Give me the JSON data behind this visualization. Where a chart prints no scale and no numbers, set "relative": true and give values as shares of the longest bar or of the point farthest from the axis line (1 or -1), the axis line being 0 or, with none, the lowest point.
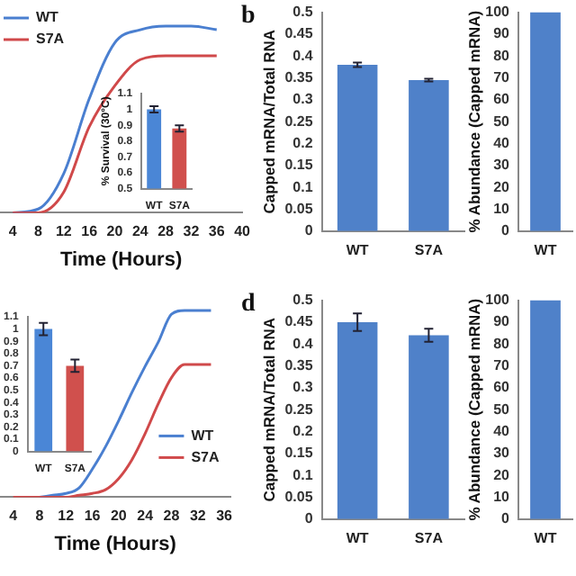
{
  "chart_data": [
    {
      "type": "line",
      "xlabel": "Time (Hours)",
      "relative": true,
      "x": [
        4,
        8,
        12,
        16,
        20,
        24,
        28,
        32,
        36
      ],
      "xlim": [
        2,
        40
      ],
      "xticks": [
        4,
        8,
        12,
        16,
        20,
        24,
        28,
        32,
        36,
        40
      ],
      "legend": "top left",
      "marker": "none",
      "series": [
        {
          "name": "WT",
          "color": "#4a7fd0",
          "values": [
            0,
            0.02,
            0.21,
            0.61,
            0.91,
            0.98,
            1,
            1,
            0.98
          ]
        },
        {
          "name": "S7A",
          "color": "#d0494a",
          "values": [
            0,
            0,
            0.11,
            0.46,
            0.68,
            0.82,
            0.84,
            0.84,
            0.84
          ]
        }
      ]
    },
    {
      "type": "bar",
      "ylabel": "% Survival (30°C)",
      "categories": [
        "WT",
        "S7A"
      ],
      "values": [
        1.0,
        0.88
      ],
      "errors": [
        0.02,
        0.02
      ],
      "colors": [
        "#4a86d6",
        "#d0504d"
      ],
      "ylim": [
        0.5,
        1.1
      ],
      "yticks": [
        0.5,
        0.6,
        0.7,
        0.8,
        0.9,
        1,
        1.1
      ]
    },
    {
      "type": "bar",
      "ylabel": "Capped mRNA/Total RNA",
      "annotations": [
        "b"
      ],
      "categories": [
        "WT",
        "S7A"
      ],
      "values": [
        0.38,
        0.345
      ],
      "errors": [
        0.005,
        0.003
      ],
      "colors": [
        "#4f81c9",
        "#4f81c9"
      ],
      "ylim": [
        0,
        0.5
      ],
      "yticks": [
        0,
        0.05,
        0.1,
        0.15,
        0.2,
        0.25,
        0.3,
        0.35,
        0.4,
        0.45,
        0.5
      ]
    },
    {
      "type": "bar",
      "ylabel": "% Abundance (Capped mRNA)",
      "categories": [
        "WT"
      ],
      "values": [
        100
      ],
      "colors": [
        "#4f81c9"
      ],
      "ylim": [
        0,
        100
      ],
      "yticks": [
        0,
        10,
        20,
        30,
        40,
        50,
        60,
        70,
        80,
        90,
        100
      ]
    },
    {
      "type": "line",
      "xlabel": "Time (Hours)",
      "relative": true,
      "x": [
        4,
        6,
        8,
        10,
        12,
        14,
        16,
        18,
        20,
        22,
        24,
        26,
        28,
        30,
        32,
        34
      ],
      "xlim": [
        2,
        37
      ],
      "xticks": [
        4,
        8,
        12,
        16,
        20,
        24,
        28,
        32,
        36
      ],
      "legend": "bottom right",
      "marker": "none",
      "series": [
        {
          "name": "WT",
          "color": "#4a7fd0",
          "values": [
            null,
            null,
            0,
            0.01,
            0.02,
            0.05,
            0.15,
            0.27,
            0.41,
            0.56,
            0.7,
            0.83,
            0.98,
            1,
            1,
            1
          ]
        },
        {
          "name": "S7A",
          "color": "#d0494a",
          "values": [
            0,
            0,
            0,
            0,
            0,
            0.01,
            0.02,
            0.04,
            0.1,
            0.2,
            0.34,
            0.5,
            0.64,
            0.71,
            0.71,
            0.71
          ]
        }
      ]
    },
    {
      "type": "bar",
      "categories": [
        "WT",
        "S7A"
      ],
      "values": [
        1.0,
        0.7
      ],
      "errors": [
        0.05,
        0.05
      ],
      "colors": [
        "#4a86d6",
        "#d0504d"
      ],
      "ylim": [
        0,
        1.1
      ],
      "yticks": [
        0,
        0.1,
        0.2,
        0.3,
        0.4,
        0.5,
        0.6,
        0.7,
        0.8,
        0.9,
        1,
        1.1
      ]
    },
    {
      "type": "bar",
      "ylabel": "Capped mRNA/Total RNA",
      "annotations": [
        "d"
      ],
      "categories": [
        "WT",
        "S7A"
      ],
      "values": [
        0.45,
        0.42
      ],
      "errors": [
        0.02,
        0.015
      ],
      "colors": [
        "#4f81c9",
        "#4f81c9"
      ],
      "ylim": [
        0,
        0.5
      ],
      "yticks": [
        0,
        0.05,
        0.1,
        0.15,
        0.2,
        0.25,
        0.3,
        0.35,
        0.4,
        0.45,
        0.5
      ]
    },
    {
      "type": "bar",
      "ylabel": "% Abundance (Capped mRNA)",
      "categories": [
        "WT"
      ],
      "values": [
        100
      ],
      "colors": [
        "#4f81c9"
      ],
      "ylim": [
        0,
        100
      ],
      "yticks": [
        0,
        10,
        20,
        30,
        40,
        50,
        60,
        70,
        80,
        90,
        100
      ]
    }
  ]
}
